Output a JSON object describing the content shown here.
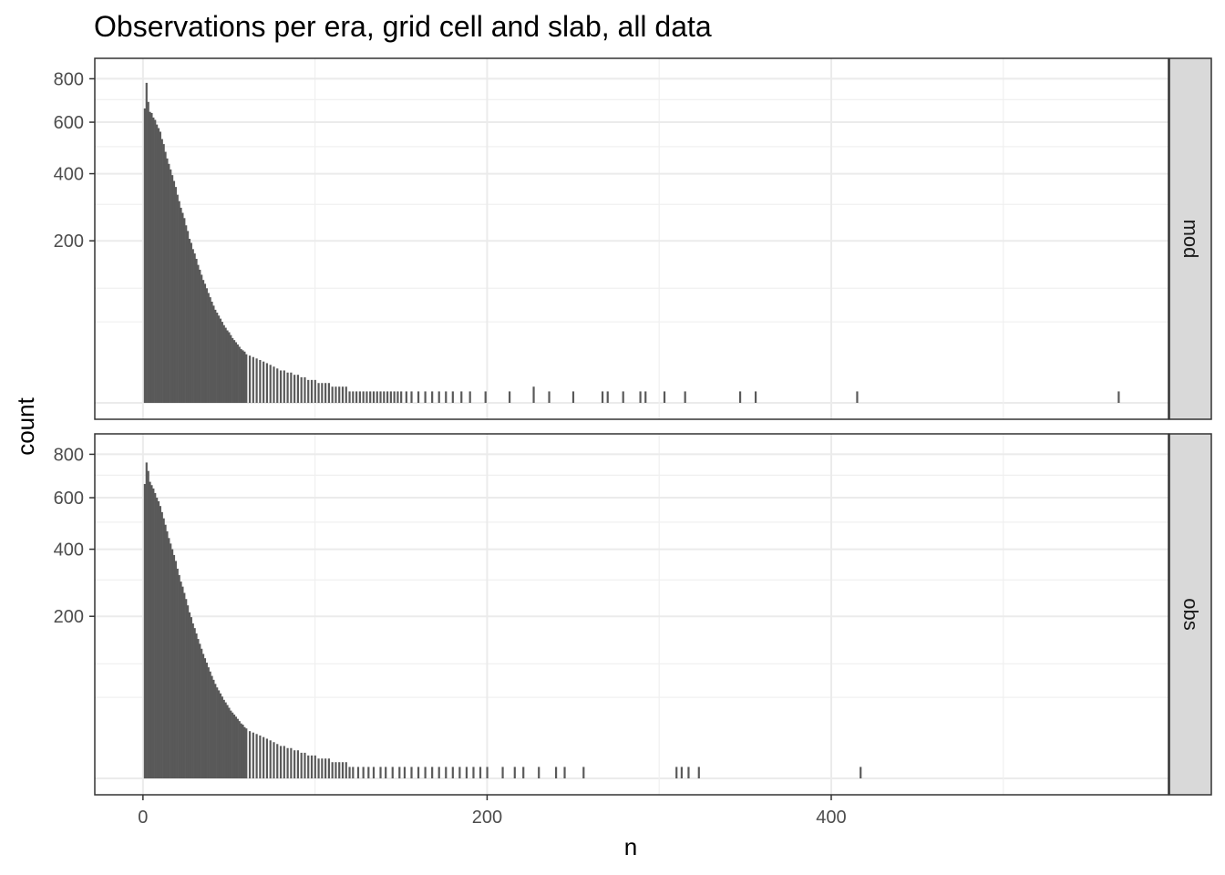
{
  "chart_data": {
    "type": "bar",
    "title": "Observations per era, grid cell and slab, all data",
    "xlabel": "n",
    "ylabel": "count",
    "y_scale": "sqrt",
    "xlim": [
      -28,
      596
    ],
    "ylim": [
      0,
      820
    ],
    "x_ticks": [
      0,
      200,
      400
    ],
    "x_minor_ticks": [
      100,
      300,
      500
    ],
    "y_ticks": [
      200,
      400,
      600,
      800
    ],
    "y_minor_ticks": [
      50,
      100,
      300,
      500,
      700
    ],
    "grid": true,
    "bar_color": "#595959",
    "strip_color": "#d9d9d9",
    "panels": [
      {
        "label": "mod",
        "bars": [
          [
            1,
            660
          ],
          [
            2,
            780
          ],
          [
            3,
            690
          ],
          [
            4,
            645
          ],
          [
            5,
            640
          ],
          [
            6,
            620
          ],
          [
            7,
            610
          ],
          [
            8,
            590
          ],
          [
            9,
            575
          ],
          [
            10,
            560
          ],
          [
            11,
            530
          ],
          [
            12,
            510
          ],
          [
            13,
            480
          ],
          [
            14,
            455
          ],
          [
            15,
            435
          ],
          [
            16,
            415
          ],
          [
            17,
            395
          ],
          [
            18,
            375
          ],
          [
            19,
            355
          ],
          [
            20,
            330
          ],
          [
            21,
            310
          ],
          [
            22,
            290
          ],
          [
            23,
            275
          ],
          [
            24,
            260
          ],
          [
            25,
            240
          ],
          [
            26,
            225
          ],
          [
            27,
            205
          ],
          [
            28,
            195
          ],
          [
            29,
            180
          ],
          [
            30,
            170
          ],
          [
            31,
            158
          ],
          [
            32,
            145
          ],
          [
            33,
            135
          ],
          [
            34,
            125
          ],
          [
            35,
            115
          ],
          [
            36,
            108
          ],
          [
            37,
            100
          ],
          [
            38,
            92
          ],
          [
            39,
            85
          ],
          [
            40,
            78
          ],
          [
            41,
            72
          ],
          [
            42,
            66
          ],
          [
            43,
            62
          ],
          [
            44,
            58
          ],
          [
            45,
            54
          ],
          [
            46,
            50
          ],
          [
            47,
            46
          ],
          [
            48,
            43
          ],
          [
            49,
            40
          ],
          [
            50,
            38
          ],
          [
            51,
            35
          ],
          [
            52,
            32
          ],
          [
            53,
            30
          ],
          [
            54,
            28
          ],
          [
            55,
            26
          ],
          [
            56,
            24
          ],
          [
            57,
            22
          ],
          [
            58,
            21
          ],
          [
            59,
            20
          ],
          [
            60,
            18
          ],
          [
            62,
            17
          ],
          [
            64,
            16
          ],
          [
            66,
            15
          ],
          [
            68,
            14
          ],
          [
            70,
            13
          ],
          [
            72,
            12
          ],
          [
            74,
            11
          ],
          [
            76,
            10
          ],
          [
            78,
            9
          ],
          [
            80,
            8
          ],
          [
            82,
            8
          ],
          [
            84,
            7
          ],
          [
            86,
            7
          ],
          [
            88,
            6
          ],
          [
            90,
            6
          ],
          [
            92,
            5
          ],
          [
            94,
            5
          ],
          [
            96,
            4
          ],
          [
            98,
            4
          ],
          [
            100,
            4
          ],
          [
            102,
            3
          ],
          [
            104,
            3
          ],
          [
            106,
            3
          ],
          [
            108,
            3
          ],
          [
            110,
            2
          ],
          [
            112,
            2
          ],
          [
            114,
            2
          ],
          [
            116,
            2
          ],
          [
            118,
            2
          ],
          [
            120,
            1
          ],
          [
            122,
            1
          ],
          [
            124,
            1
          ],
          [
            126,
            1
          ],
          [
            128,
            1
          ],
          [
            130,
            1
          ],
          [
            132,
            1
          ],
          [
            134,
            1
          ],
          [
            136,
            1
          ],
          [
            138,
            1
          ],
          [
            140,
            1
          ],
          [
            142,
            1
          ],
          [
            144,
            1
          ],
          [
            146,
            1
          ],
          [
            148,
            1
          ],
          [
            150,
            1
          ],
          [
            153,
            1
          ],
          [
            156,
            1
          ],
          [
            160,
            1
          ],
          [
            164,
            1
          ],
          [
            168,
            1
          ],
          [
            172,
            1
          ],
          [
            176,
            1
          ],
          [
            180,
            1
          ],
          [
            185,
            1
          ],
          [
            190,
            1
          ],
          [
            199,
            1
          ],
          [
            213,
            1
          ],
          [
            227,
            2
          ],
          [
            236,
            1
          ],
          [
            250,
            1
          ],
          [
            267,
            1
          ],
          [
            270,
            1
          ],
          [
            279,
            1
          ],
          [
            289,
            1
          ],
          [
            292,
            1
          ],
          [
            303,
            1
          ],
          [
            315,
            1
          ],
          [
            347,
            1
          ],
          [
            356,
            1
          ],
          [
            415,
            1
          ],
          [
            567,
            1
          ]
        ]
      },
      {
        "label": "obs",
        "bars": [
          [
            1,
            660
          ],
          [
            2,
            760
          ],
          [
            3,
            720
          ],
          [
            4,
            670
          ],
          [
            5,
            655
          ],
          [
            6,
            640
          ],
          [
            7,
            620
          ],
          [
            8,
            600
          ],
          [
            9,
            585
          ],
          [
            10,
            565
          ],
          [
            11,
            540
          ],
          [
            12,
            515
          ],
          [
            13,
            490
          ],
          [
            14,
            465
          ],
          [
            15,
            440
          ],
          [
            16,
            420
          ],
          [
            17,
            400
          ],
          [
            18,
            380
          ],
          [
            19,
            360
          ],
          [
            20,
            335
          ],
          [
            21,
            315
          ],
          [
            22,
            295
          ],
          [
            23,
            280
          ],
          [
            24,
            262
          ],
          [
            25,
            245
          ],
          [
            26,
            228
          ],
          [
            27,
            210
          ],
          [
            28,
            198
          ],
          [
            29,
            183
          ],
          [
            30,
            172
          ],
          [
            31,
            160
          ],
          [
            32,
            148
          ],
          [
            33,
            138
          ],
          [
            34,
            128
          ],
          [
            35,
            118
          ],
          [
            36,
            110
          ],
          [
            37,
            102
          ],
          [
            38,
            94
          ],
          [
            39,
            87
          ],
          [
            40,
            80
          ],
          [
            41,
            74
          ],
          [
            42,
            68
          ],
          [
            43,
            63
          ],
          [
            44,
            59
          ],
          [
            45,
            55
          ],
          [
            46,
            51
          ],
          [
            47,
            47
          ],
          [
            48,
            44
          ],
          [
            49,
            41
          ],
          [
            50,
            38
          ],
          [
            51,
            35
          ],
          [
            52,
            33
          ],
          [
            53,
            31
          ],
          [
            54,
            29
          ],
          [
            55,
            27
          ],
          [
            56,
            25
          ],
          [
            57,
            23
          ],
          [
            58,
            22
          ],
          [
            59,
            20
          ],
          [
            60,
            19
          ],
          [
            62,
            17
          ],
          [
            64,
            16
          ],
          [
            66,
            15
          ],
          [
            68,
            14
          ],
          [
            70,
            13
          ],
          [
            72,
            12
          ],
          [
            74,
            11
          ],
          [
            76,
            10
          ],
          [
            78,
            9
          ],
          [
            80,
            8
          ],
          [
            82,
            8
          ],
          [
            84,
            7
          ],
          [
            86,
            7
          ],
          [
            88,
            6
          ],
          [
            90,
            6
          ],
          [
            92,
            5
          ],
          [
            94,
            5
          ],
          [
            96,
            4
          ],
          [
            98,
            4
          ],
          [
            100,
            4
          ],
          [
            102,
            3
          ],
          [
            104,
            3
          ],
          [
            106,
            3
          ],
          [
            108,
            3
          ],
          [
            110,
            2
          ],
          [
            112,
            2
          ],
          [
            114,
            2
          ],
          [
            116,
            2
          ],
          [
            118,
            2
          ],
          [
            120,
            1
          ],
          [
            122,
            1
          ],
          [
            125,
            1
          ],
          [
            128,
            1
          ],
          [
            131,
            1
          ],
          [
            134,
            1
          ],
          [
            138,
            1
          ],
          [
            141,
            1
          ],
          [
            145,
            1
          ],
          [
            149,
            1
          ],
          [
            152,
            1
          ],
          [
            156,
            1
          ],
          [
            160,
            1
          ],
          [
            164,
            1
          ],
          [
            168,
            1
          ],
          [
            172,
            1
          ],
          [
            176,
            1
          ],
          [
            180,
            1
          ],
          [
            184,
            1
          ],
          [
            188,
            1
          ],
          [
            192,
            1
          ],
          [
            196,
            1
          ],
          [
            200,
            1
          ],
          [
            209,
            1
          ],
          [
            216,
            1
          ],
          [
            221,
            1
          ],
          [
            230,
            1
          ],
          [
            240,
            1
          ],
          [
            245,
            1
          ],
          [
            256,
            1
          ],
          [
            310,
            1
          ],
          [
            313,
            1
          ],
          [
            317,
            1
          ],
          [
            323,
            1
          ],
          [
            417,
            1
          ]
        ]
      }
    ]
  }
}
